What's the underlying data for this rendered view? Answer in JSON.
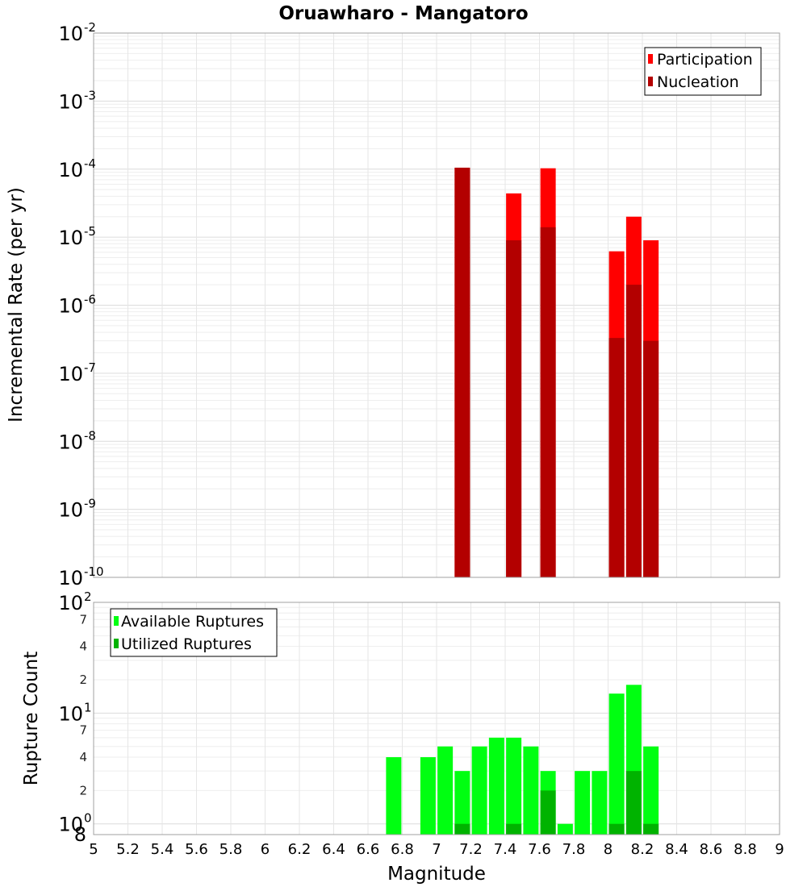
{
  "chart_data": [
    {
      "type": "bar",
      "title": "Oruawharo - Mangatoro",
      "ylabel": "Incremental Rate (per yr)",
      "yscale": "log",
      "ylim": [
        1e-10,
        0.01
      ],
      "xlim": [
        5,
        9
      ],
      "grid": true,
      "legend_position": "top-right",
      "y_ticks": [
        {
          "base": "10",
          "exp": "-10"
        },
        {
          "base": "10",
          "exp": "-9"
        },
        {
          "base": "10",
          "exp": "-8"
        },
        {
          "base": "10",
          "exp": "-7"
        },
        {
          "base": "10",
          "exp": "-6"
        },
        {
          "base": "10",
          "exp": "-5"
        },
        {
          "base": "10",
          "exp": "-4"
        },
        {
          "base": "10",
          "exp": "-3"
        },
        {
          "base": "10",
          "exp": "-2"
        }
      ],
      "series": [
        {
          "name": "Participation",
          "color": "#ff0000",
          "x": [
            7.15,
            7.45,
            7.65,
            8.05,
            8.15,
            8.25
          ],
          "values": [
            0.000105,
            4.4e-05,
            0.000103,
            6.2e-06,
            2e-05,
            9e-06
          ]
        },
        {
          "name": "Nucleation",
          "color": "#b30000",
          "x": [
            7.15,
            7.45,
            7.65,
            8.05,
            8.15,
            8.25
          ],
          "values": [
            0.000105,
            9e-06,
            1.4e-05,
            3.3e-07,
            2e-06,
            3e-07
          ]
        }
      ]
    },
    {
      "type": "bar",
      "ylabel": "Rupture Count",
      "xlabel": "Magnitude",
      "yscale": "log",
      "ylim": [
        0.8,
        100
      ],
      "xlim": [
        5,
        9
      ],
      "grid": true,
      "legend_position": "top-left",
      "x_ticks": [
        "5",
        "5.2",
        "5.4",
        "5.6",
        "5.8",
        "6",
        "6.2",
        "6.4",
        "6.6",
        "6.8",
        "7",
        "7.2",
        "7.4",
        "7.6",
        "7.8",
        "8",
        "8.2",
        "8.4",
        "8.6",
        "8.8",
        "9"
      ],
      "y_ticks": [
        {
          "value": 1,
          "base": "10",
          "exp": "0"
        },
        {
          "value": 2,
          "minor": "2"
        },
        {
          "value": 4,
          "minor": "4"
        },
        {
          "value": 7,
          "minor": "7"
        },
        {
          "value": 10,
          "base": "10",
          "exp": "1"
        },
        {
          "value": 20,
          "minor": "2"
        },
        {
          "value": 40,
          "minor": "4"
        },
        {
          "value": 70,
          "minor": "7"
        },
        {
          "value": 100,
          "base": "10",
          "exp": "2"
        }
      ],
      "y_axis_floor_label": "8",
      "series": [
        {
          "name": "Available Ruptures",
          "color": "#00ff11",
          "x": [
            6.75,
            6.95,
            7.05,
            7.15,
            7.25,
            7.35,
            7.45,
            7.55,
            7.65,
            7.75,
            7.85,
            7.95,
            8.05,
            8.15,
            8.25
          ],
          "values": [
            4,
            4,
            5,
            3,
            5,
            6,
            6,
            5,
            3,
            1,
            3,
            3,
            15,
            18,
            5
          ]
        },
        {
          "name": "Utilized Ruptures",
          "color": "#00b300",
          "x": [
            7.15,
            7.45,
            7.65,
            8.05,
            8.15,
            8.25
          ],
          "values": [
            1,
            1,
            2,
            1,
            3,
            1
          ]
        }
      ]
    }
  ]
}
